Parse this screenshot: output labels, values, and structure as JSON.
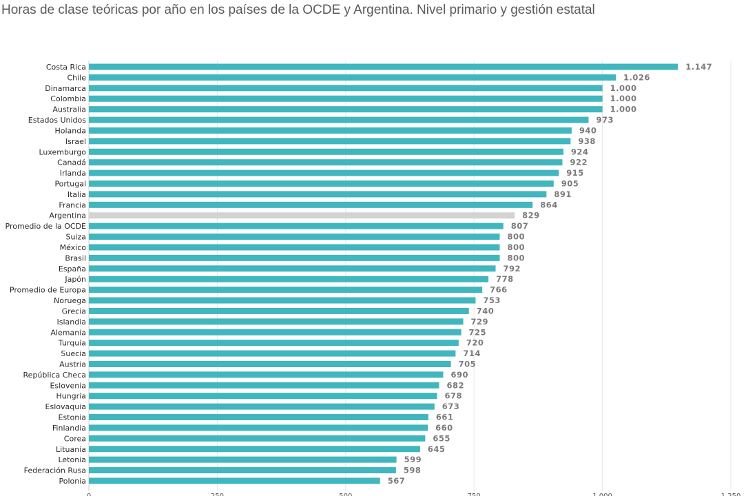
{
  "chart_data": {
    "type": "bar",
    "orientation": "horizontal",
    "title": "Horas de clase teóricas por año en los países de la OCDE y Argentina. Nivel primario y gestión estatal",
    "xlabel": "",
    "ylabel": "",
    "xlim": [
      0,
      1250
    ],
    "xticks": [
      0,
      250,
      500,
      750,
      1000,
      1250
    ],
    "xtick_labels": [
      "0",
      "250",
      "500",
      "750",
      "1.000",
      "1.250"
    ],
    "grid": true,
    "colors": {
      "default": "#40b6be",
      "highlight": "#d3d3d3"
    },
    "highlight": "Argentina",
    "categories": [
      "Costa Rica",
      "Chile",
      "Dinamarca",
      "Colombia",
      "Australia",
      "Estados Unidos",
      "Holanda",
      "Israel",
      "Luxemburgo",
      "Canadá",
      "Irlanda",
      "Portugal",
      "Italia",
      "Francia",
      "Argentina",
      "Promedio de la OCDE",
      "Suiza",
      "México",
      "Brasil",
      "España",
      "Japón",
      "Promedio de Europa",
      "Noruega",
      "Grecia",
      "Islandia",
      "Alemania",
      "Turquía",
      "Suecia",
      "Austria",
      "República Checa",
      "Eslovenia",
      "Hungría",
      "Eslovaquia",
      "Estonia",
      "Finlandia",
      "Corea",
      "Lituania",
      "Letonia",
      "Federación Rusa",
      "Polonia"
    ],
    "values": [
      1147,
      1026,
      1000,
      1000,
      1000,
      973,
      940,
      938,
      924,
      922,
      915,
      905,
      891,
      864,
      829,
      807,
      800,
      800,
      800,
      792,
      778,
      766,
      753,
      740,
      729,
      725,
      720,
      714,
      705,
      690,
      682,
      678,
      673,
      661,
      660,
      655,
      645,
      599,
      598,
      567
    ],
    "value_labels": [
      "1.147",
      "1.026",
      "1.000",
      "1.000",
      "1.000",
      "973",
      "940",
      "938",
      "924",
      "922",
      "915",
      "905",
      "891",
      "864",
      "829",
      "807",
      "800",
      "800",
      "800",
      "792",
      "778",
      "766",
      "753",
      "740",
      "729",
      "725",
      "720",
      "714",
      "705",
      "690",
      "682",
      "678",
      "673",
      "661",
      "660",
      "655",
      "645",
      "599",
      "598",
      "567"
    ]
  }
}
